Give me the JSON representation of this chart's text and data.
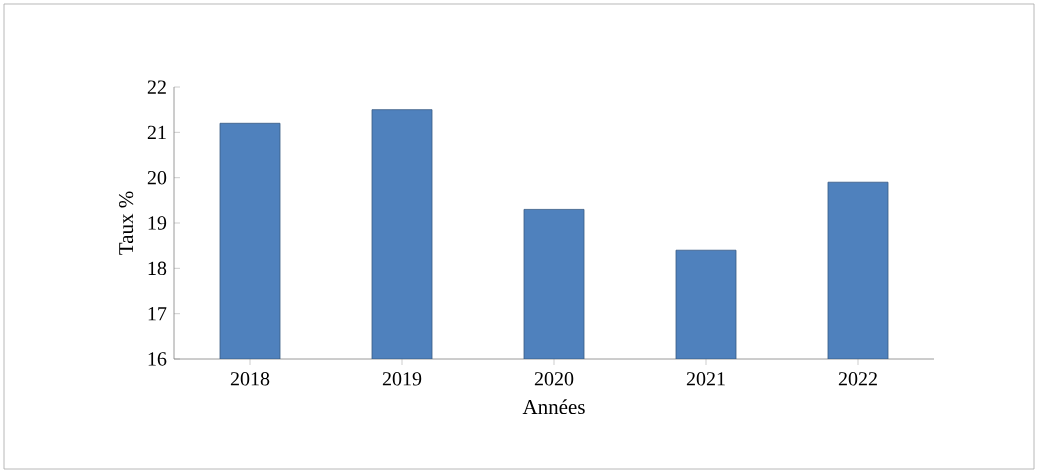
{
  "chart_data": {
    "type": "bar",
    "xlabel": "Années",
    "ylabel": "Taux %",
    "categories": [
      "2018",
      "2019",
      "2020",
      "2021",
      "2022"
    ],
    "values": [
      21.2,
      21.5,
      19.3,
      18.4,
      19.9
    ],
    "color": "#4f81bd",
    "ylim": [
      16,
      22
    ],
    "yticks": [
      16,
      17,
      18,
      19,
      20,
      21,
      22
    ],
    "grid": false
  }
}
